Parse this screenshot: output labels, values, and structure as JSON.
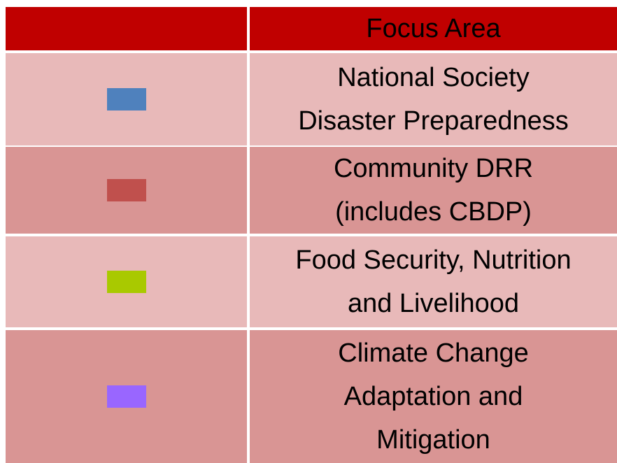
{
  "table": {
    "header": [
      "",
      "Focus Area"
    ],
    "rows": [
      {
        "color": "#4f81bd",
        "label": [
          "National Society",
          "Disaster Preparedness"
        ]
      },
      {
        "color": "#c0504d",
        "label": [
          "Community DRR",
          "(includes CBDP)"
        ]
      },
      {
        "color": "#a9c900",
        "label": [
          "Food Security, Nutrition",
          "and Livelihood"
        ]
      },
      {
        "color": "#9966ff",
        "label": [
          "Climate Change",
          "Adaptation and",
          "Mitigation"
        ]
      }
    ]
  }
}
